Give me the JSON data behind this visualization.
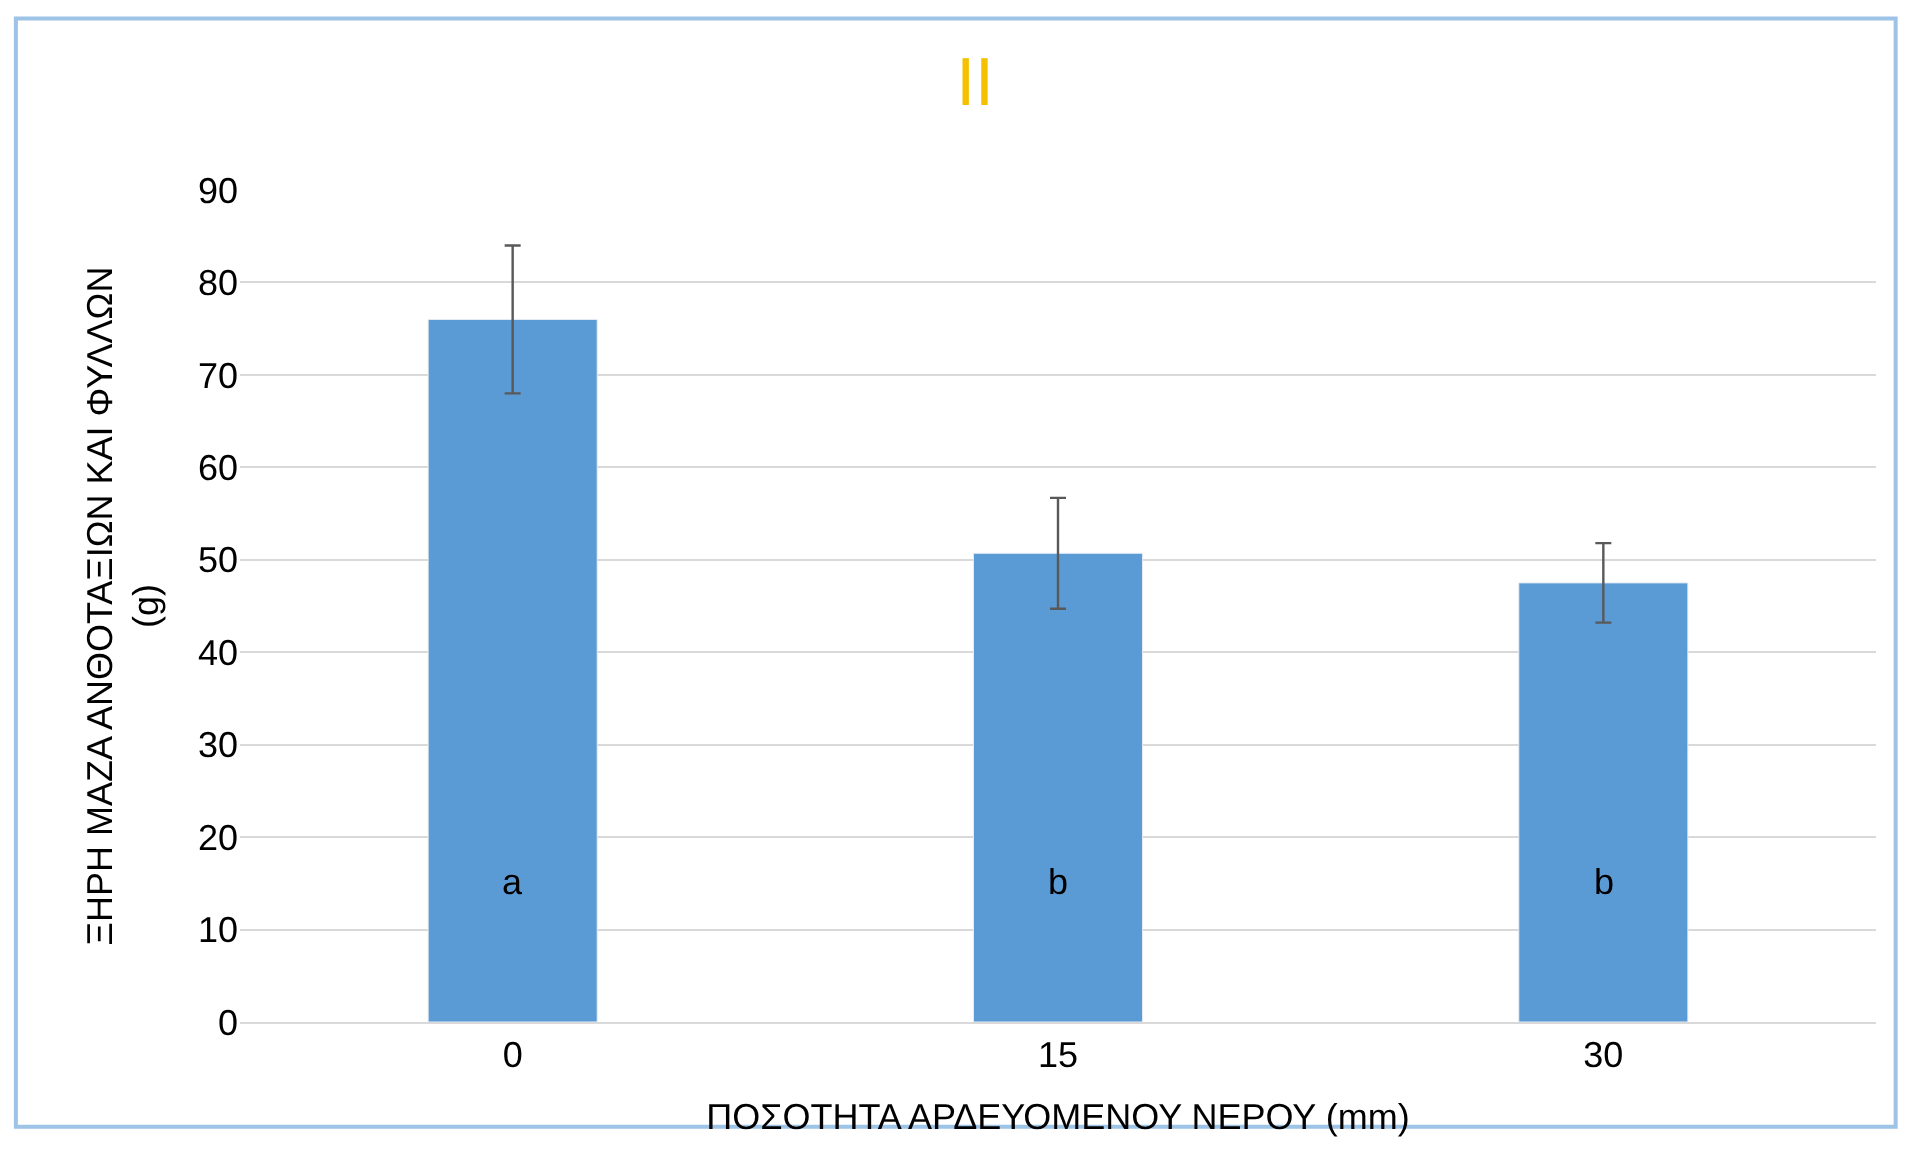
{
  "chart_data": {
    "type": "bar",
    "title": "II",
    "xlabel": "ΠΟΣΟΤΗΤΑ ΑΡΔΕΥΟΜΕΝΟΥ ΝΕΡΟΥ (mm)",
    "ylabel": "ΞΗΡΗ ΜΑΖΑ ΑΝΘΟΤΑΞΙΩΝ ΚΑΙ ΦΥΛΛΩΝ (g)",
    "categories": [
      "0",
      "15",
      "30"
    ],
    "values": [
      76,
      50.7,
      47.5
    ],
    "errors": [
      8,
      6,
      4.3
    ],
    "color": "#5b9bd5",
    "ylim": [
      0,
      90
    ],
    "yticks": [
      0,
      10,
      20,
      30,
      40,
      50,
      60,
      70,
      80,
      90
    ],
    "grid": "y",
    "annotations": [
      "a",
      "b",
      "b"
    ]
  }
}
